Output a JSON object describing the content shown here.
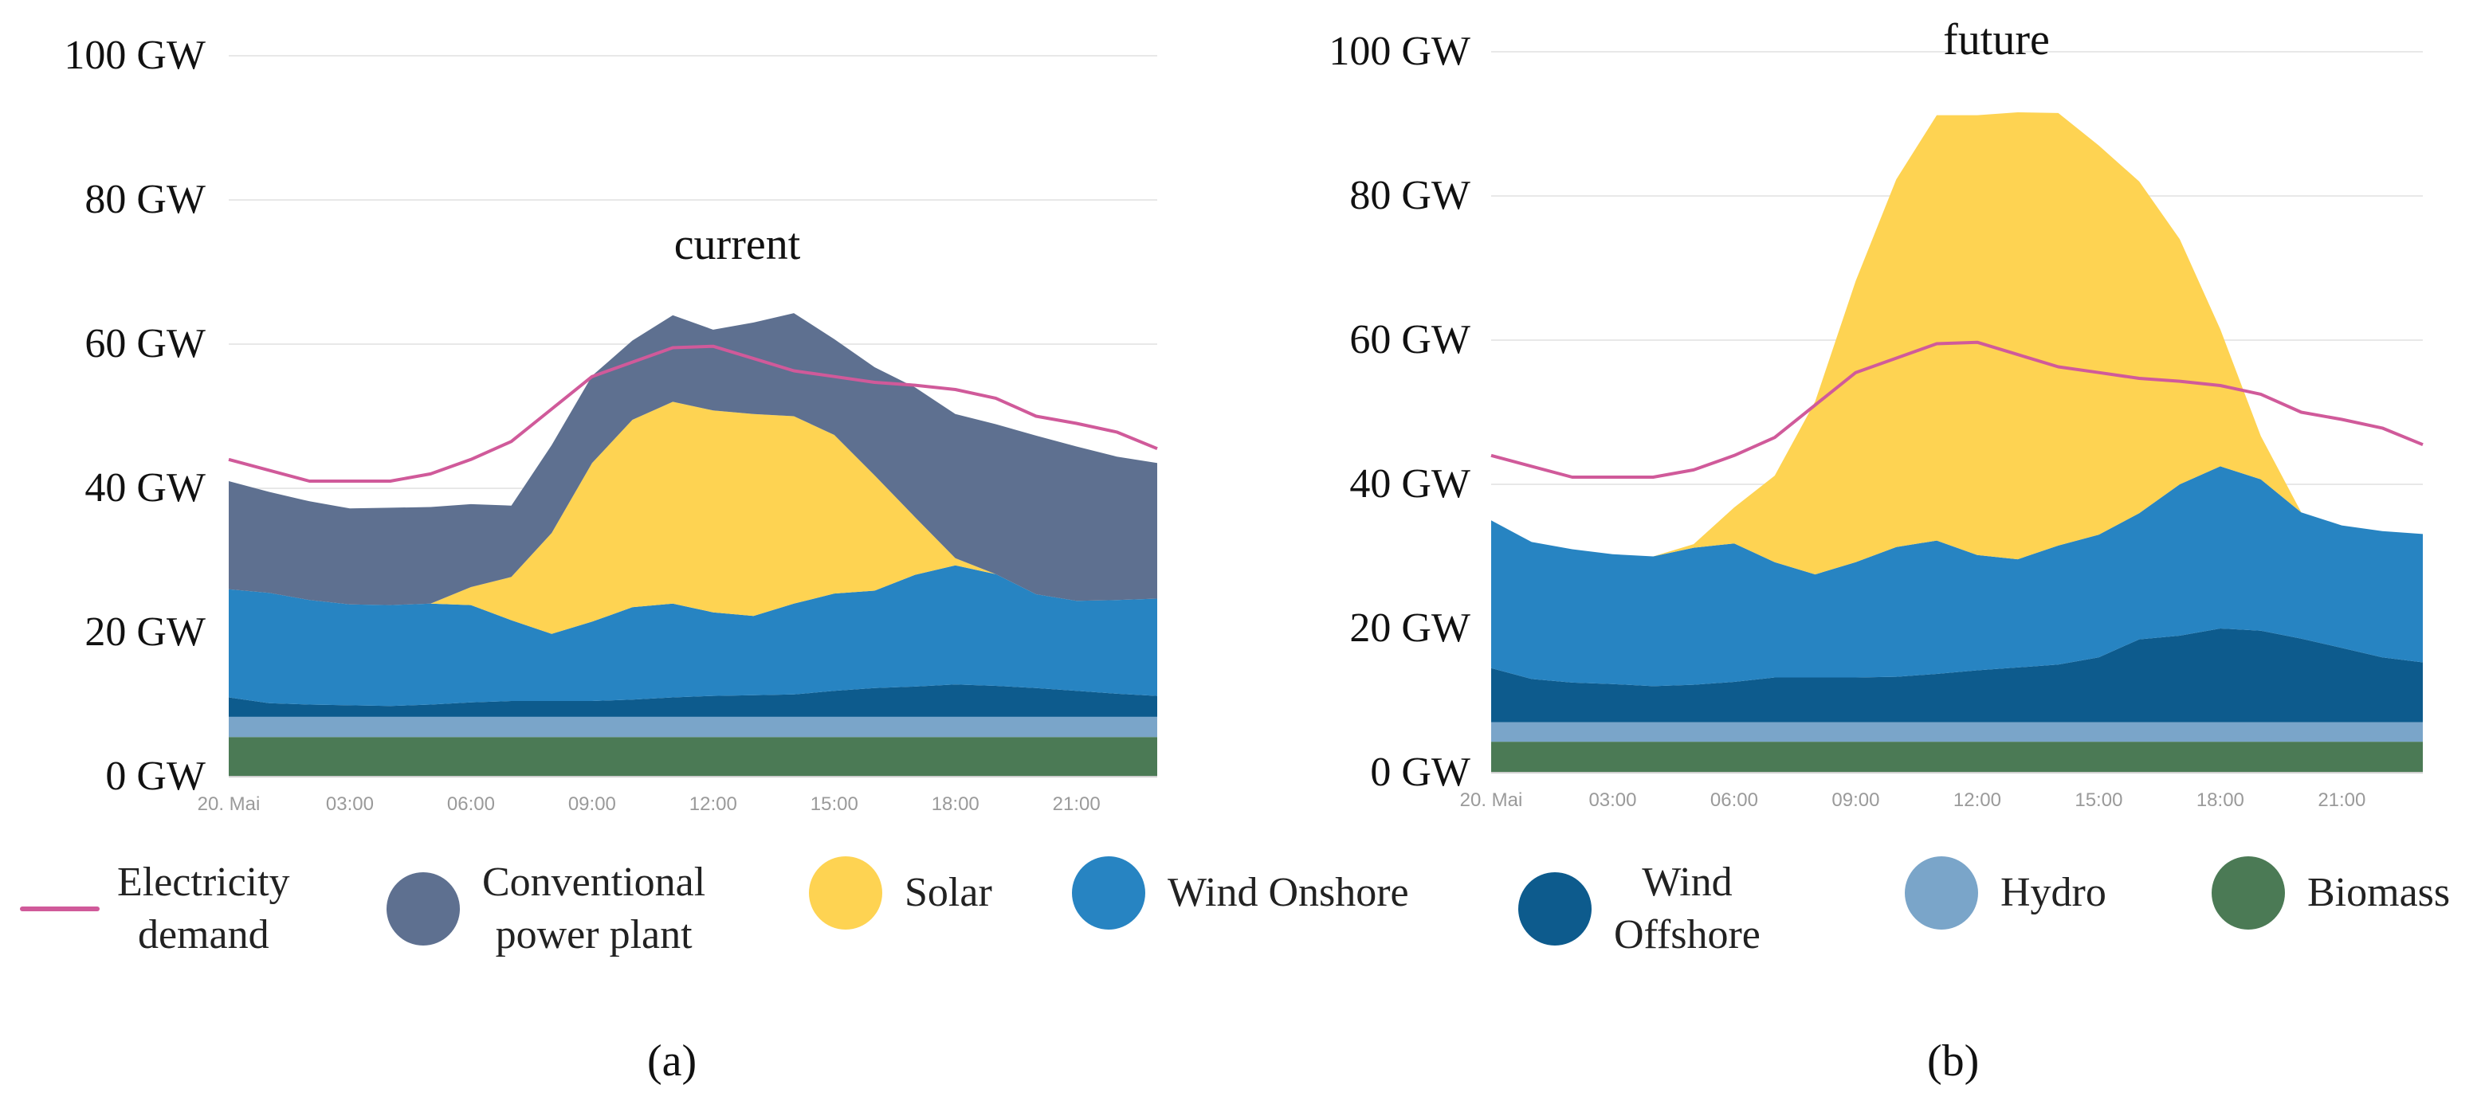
{
  "chart_data": [
    {
      "type": "area",
      "subtitle": "(a)",
      "title": "current",
      "stacked": true,
      "ylim": [
        0,
        100
      ],
      "y_ticks": [
        "0 GW",
        "20 GW",
        "40 GW",
        "60 GW",
        "80 GW",
        "100 GW"
      ],
      "x_ticks": [
        "20. Mai",
        "03:00",
        "06:00",
        "09:00",
        "12:00",
        "15:00",
        "18:00",
        "21:00"
      ],
      "x": [
        0,
        1,
        2,
        3,
        4,
        5,
        6,
        7,
        8,
        9,
        10,
        11,
        12,
        13,
        14,
        15,
        16,
        17,
        18,
        19,
        20,
        21,
        22,
        23
      ],
      "series": [
        {
          "name": "Biomass",
          "values": [
            5.5,
            5.5,
            5.5,
            5.5,
            5.5,
            5.5,
            5.5,
            5.5,
            5.5,
            5.5,
            5.5,
            5.5,
            5.5,
            5.5,
            5.5,
            5.5,
            5.5,
            5.5,
            5.5,
            5.5,
            5.5,
            5.5,
            5.5,
            5.5
          ]
        },
        {
          "name": "Hydro",
          "values": [
            2.8,
            2.8,
            2.8,
            2.8,
            2.8,
            2.8,
            2.8,
            2.8,
            2.8,
            2.8,
            2.8,
            2.8,
            2.8,
            2.8,
            2.8,
            2.8,
            2.8,
            2.8,
            2.8,
            2.8,
            2.8,
            2.8,
            2.8,
            2.8
          ]
        },
        {
          "name": "Wind Offshore",
          "values": [
            2.7,
            1.9,
            1.7,
            1.6,
            1.5,
            1.7,
            2,
            2.2,
            2.2,
            2.2,
            2.4,
            2.7,
            2.9,
            3,
            3.1,
            3.6,
            4,
            4.2,
            4.5,
            4.3,
            4,
            3.6,
            3.2,
            2.9
          ]
        },
        {
          "name": "Wind Onshore",
          "values": [
            15,
            15.3,
            14.5,
            14,
            14,
            14,
            13.5,
            11.2,
            9.3,
            11,
            12.8,
            13,
            11.6,
            11,
            12.6,
            13.5,
            13.5,
            15.5,
            16.5,
            15.5,
            13,
            12.5,
            13,
            13.5
          ]
        },
        {
          "name": "Solar",
          "values": [
            0,
            0,
            0,
            0,
            0,
            0,
            2.5,
            6,
            14,
            22,
            26,
            28,
            28,
            28,
            26,
            22,
            16,
            8,
            1,
            0,
            0,
            0,
            0,
            0
          ]
        },
        {
          "name": "Conventional power plant",
          "values": [
            15,
            14,
            13.7,
            13.3,
            13.5,
            13.4,
            11.5,
            9.9,
            12.2,
            12.1,
            11,
            12,
            11.2,
            12.7,
            14.3,
            13.3,
            15,
            18,
            20,
            20.8,
            22,
            21.4,
            19.9,
            18.8
          ]
        }
      ],
      "line": {
        "name": "Electricity demand",
        "values": [
          44,
          42.5,
          41,
          41,
          41,
          42,
          44,
          46.5,
          51,
          55.5,
          57.5,
          59.5,
          59.7,
          58,
          56.3,
          55.5,
          54.7,
          54.3,
          53.7,
          52.5,
          50,
          49,
          47.8,
          45.5
        ]
      }
    },
    {
      "type": "area",
      "subtitle": "(b)",
      "title": "future",
      "stacked": true,
      "ylim": [
        0,
        100
      ],
      "y_ticks": [
        "0 GW",
        "20 GW",
        "40 GW",
        "60 GW",
        "80 GW",
        "100 GW"
      ],
      "x_ticks": [
        "20. Mai",
        "03:00",
        "06:00",
        "09:00",
        "12:00",
        "15:00",
        "18:00",
        "21:00"
      ],
      "x": [
        0,
        1,
        2,
        3,
        4,
        5,
        6,
        7,
        8,
        9,
        10,
        11,
        12,
        13,
        14,
        15,
        16,
        17,
        18,
        19,
        20,
        21,
        22,
        23
      ],
      "series": [
        {
          "name": "Biomass",
          "values": [
            4.3,
            4.3,
            4.3,
            4.3,
            4.3,
            4.3,
            4.3,
            4.3,
            4.3,
            4.3,
            4.3,
            4.3,
            4.3,
            4.3,
            4.3,
            4.3,
            4.3,
            4.3,
            4.3,
            4.3,
            4.3,
            4.3,
            4.3,
            4.3
          ]
        },
        {
          "name": "Hydro",
          "values": [
            2.7,
            2.7,
            2.7,
            2.7,
            2.7,
            2.7,
            2.7,
            2.7,
            2.7,
            2.7,
            2.7,
            2.7,
            2.7,
            2.7,
            2.7,
            2.7,
            2.7,
            2.7,
            2.7,
            2.7,
            2.7,
            2.7,
            2.7,
            2.7
          ]
        },
        {
          "name": "Wind Offshore",
          "values": [
            7.5,
            6,
            5.5,
            5.3,
            5,
            5.2,
            5.6,
            6.2,
            6.2,
            6.2,
            6.3,
            6.7,
            7.2,
            7.6,
            8,
            9,
            11.5,
            12,
            13,
            12.7,
            11.6,
            10.3,
            9,
            8.3
          ]
        },
        {
          "name": "Wind Onshore",
          "values": [
            20.5,
            19,
            18.5,
            18,
            18,
            19,
            19.2,
            16,
            14.3,
            16,
            18,
            18.5,
            16,
            15,
            16.5,
            17,
            17.5,
            21,
            22.5,
            21,
            17.5,
            17,
            17.5,
            17.8
          ]
        },
        {
          "name": "Solar",
          "values": [
            0,
            0,
            0,
            0,
            0,
            0.5,
            5,
            12,
            24,
            39,
            51,
            59,
            61,
            62,
            60,
            54,
            46,
            34,
            19,
            6,
            0,
            0,
            0,
            0
          ]
        }
      ],
      "line": {
        "name": "Electricity demand",
        "values": [
          44,
          42.5,
          41,
          41,
          41,
          42,
          44,
          46.5,
          51,
          55.5,
          57.5,
          59.5,
          59.7,
          58,
          56.3,
          55.5,
          54.7,
          54.3,
          53.7,
          52.5,
          50,
          49,
          47.8,
          45.5
        ]
      }
    }
  ],
  "colors": {
    "Biomass": "#4b7a55",
    "Hydro": "#7aa5c9",
    "Wind Offshore": "#0d5b8d",
    "Wind Onshore": "#2784c2",
    "Solar": "#fed352",
    "Conventional power plant": "#5e7090",
    "Electricity demand": "#d05a9a",
    "grid": "#e8e8e8"
  },
  "legend": [
    {
      "key": "Electricity demand",
      "label": "Electricity\ndemand",
      "swatch": "line"
    },
    {
      "key": "Conventional power plant",
      "label": "Conventional\npower plant",
      "swatch": "dot"
    },
    {
      "key": "Solar",
      "label": "Solar",
      "swatch": "dot"
    },
    {
      "key": "Wind Onshore",
      "label": "Wind Onshore",
      "swatch": "dot"
    },
    {
      "key": "Wind Offshore",
      "label": "Wind\nOffshore",
      "swatch": "dot"
    },
    {
      "key": "Hydro",
      "label": "Hydro",
      "swatch": "dot"
    },
    {
      "key": "Biomass",
      "label": "Biomass",
      "swatch": "dot"
    }
  ],
  "captions": [
    "(a)",
    "(b)"
  ]
}
